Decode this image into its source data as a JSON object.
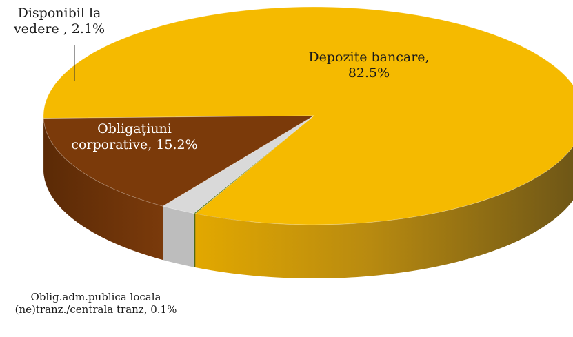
{
  "chart_data": {
    "type": "pie",
    "title": "",
    "slices": [
      {
        "label_lines": [
          "Depozite bancare,",
          "82.5%"
        ],
        "value": 82.5,
        "color": "#F5BA00"
      },
      {
        "label_lines": [
          "Oblig.adm.publica locala",
          "(ne)tranz./centrala tranz, 0.1%"
        ],
        "value": 0.1,
        "color": "#5E7A1F"
      },
      {
        "label_lines": [
          "Disponibil la",
          "vedere , 2.1%"
        ],
        "value": 2.1,
        "color": "#D9D9D9"
      },
      {
        "label_lines": [
          "Obligaţiuni",
          "corporative, 15.2%"
        ],
        "value": 15.2,
        "color": "#7B3A0A"
      }
    ],
    "style": "3d-tilted",
    "legend": "none"
  }
}
